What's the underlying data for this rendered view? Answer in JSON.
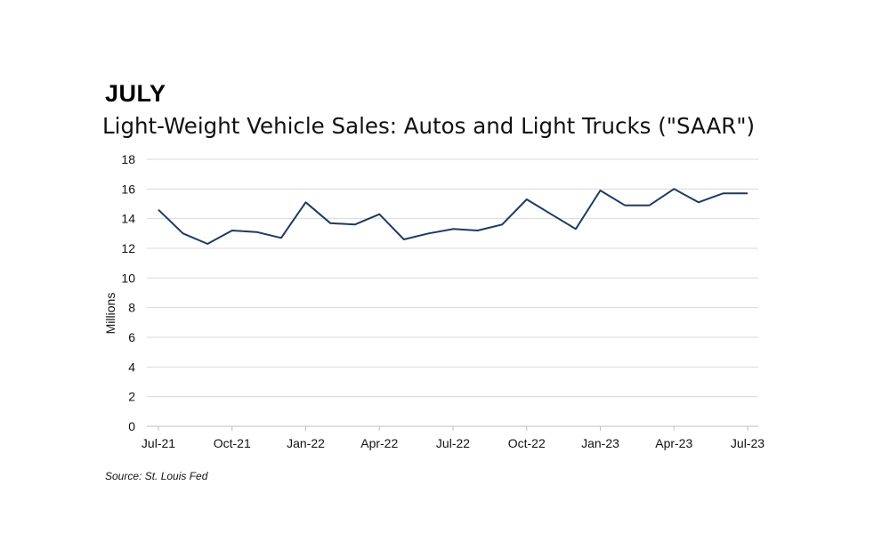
{
  "header": {
    "month": "JULY"
  },
  "chart_data": {
    "type": "line",
    "title": "Light-Weight Vehicle Sales: Autos and Light Trucks (\"SAAR\")",
    "xlabel": "",
    "ylabel": "Millions",
    "ylim": [
      0,
      18
    ],
    "yticks": [
      0,
      2,
      4,
      6,
      8,
      10,
      12,
      14,
      16,
      18
    ],
    "x": [
      "Jul-21",
      "Aug-21",
      "Sep-21",
      "Oct-21",
      "Nov-21",
      "Dec-21",
      "Jan-22",
      "Feb-22",
      "Mar-22",
      "Apr-22",
      "May-22",
      "Jun-22",
      "Jul-22",
      "Aug-22",
      "Sep-22",
      "Oct-22",
      "Nov-22",
      "Dec-22",
      "Jan-23",
      "Feb-23",
      "Mar-23",
      "Apr-23",
      "May-23",
      "Jun-23",
      "Jul-23"
    ],
    "xtick_labels": [
      "Jul-21",
      "Oct-21",
      "Jan-22",
      "Apr-22",
      "Jul-22",
      "Oct-22",
      "Jan-23",
      "Apr-23",
      "Jul-23"
    ],
    "grid": true,
    "series": [
      {
        "values": [
          14.6,
          13.0,
          12.3,
          13.2,
          13.1,
          12.7,
          15.1,
          13.7,
          13.6,
          14.3,
          12.6,
          13.0,
          13.3,
          13.2,
          13.6,
          15.3,
          14.3,
          13.3,
          15.9,
          14.9,
          14.9,
          16.0,
          15.1,
          15.7,
          15.7
        ]
      }
    ],
    "line_color": "#1f3a5f"
  },
  "footer": {
    "source": "Source: St. Louis Fed"
  }
}
